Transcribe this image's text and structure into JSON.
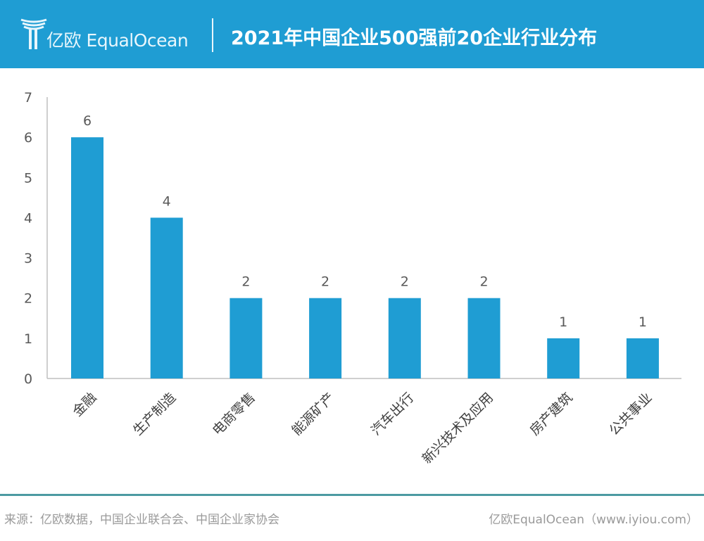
{
  "header": {
    "brand": "亿欧 EqualOcean",
    "title": "2021年中国企业500强前20企业行业分布",
    "accent": "#1f9dd3"
  },
  "footer": {
    "source": "来源：亿欧数据，中国企业联合会、中国企业家协会",
    "credit": "亿欧EqualOcean（www.iyiou.com）"
  },
  "chart_data": {
    "type": "bar",
    "title": "2021年中国企业500强前20企业行业分布",
    "categories": [
      "金融",
      "生产制造",
      "电商零售",
      "能源矿产",
      "汽车出行",
      "新兴技术及应用",
      "房产建筑",
      "公共事业"
    ],
    "values": [
      6,
      4,
      2,
      2,
      2,
      2,
      1,
      1
    ],
    "ylim": [
      0,
      7
    ],
    "yticks": [
      "0",
      "1",
      "2",
      "3",
      "4",
      "5",
      "6",
      "7"
    ],
    "xlabel": "",
    "ylabel": "",
    "grid": false,
    "bar_color": "#1f9dd3"
  }
}
